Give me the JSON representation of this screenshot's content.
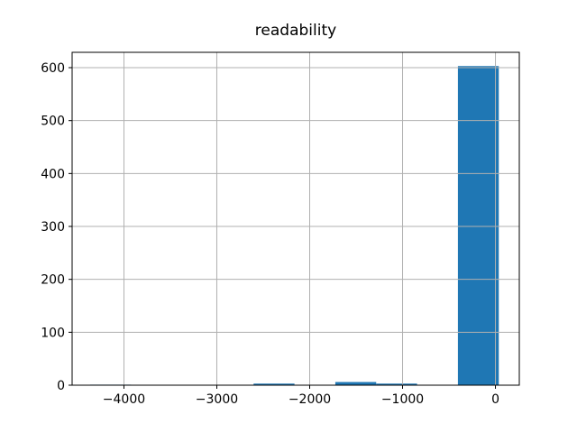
{
  "chart_data": {
    "type": "histogram",
    "title": "readability",
    "xlabel": "",
    "ylabel": "",
    "bar_color": "#1f77b4",
    "grid_color": "#b0b0b0",
    "spine_color": "#000000",
    "background_color": "#ffffff",
    "grid": true,
    "legend_position": "none",
    "bin_edges": [
      -4364,
      -3924,
      -3484,
      -3044,
      -2604,
      -2164,
      -1724,
      -1284,
      -844,
      -404,
      36
    ],
    "counts": [
      1,
      0,
      0,
      0,
      3,
      0,
      6,
      3,
      0,
      603
    ],
    "xlim": [
      -4558,
      257
    ],
    "ylim": [
      0,
      629
    ],
    "x_ticks": [
      {
        "value": -4000,
        "label": "−4000"
      },
      {
        "value": -3000,
        "label": "−3000"
      },
      {
        "value": -2000,
        "label": "−2000"
      },
      {
        "value": -1000,
        "label": "−1000"
      },
      {
        "value": 0,
        "label": "0"
      }
    ],
    "y_ticks": [
      {
        "value": 0,
        "label": "0"
      },
      {
        "value": 100,
        "label": "100"
      },
      {
        "value": 200,
        "label": "200"
      },
      {
        "value": 300,
        "label": "300"
      },
      {
        "value": 400,
        "label": "400"
      },
      {
        "value": 500,
        "label": "500"
      },
      {
        "value": 600,
        "label": "600"
      }
    ]
  }
}
